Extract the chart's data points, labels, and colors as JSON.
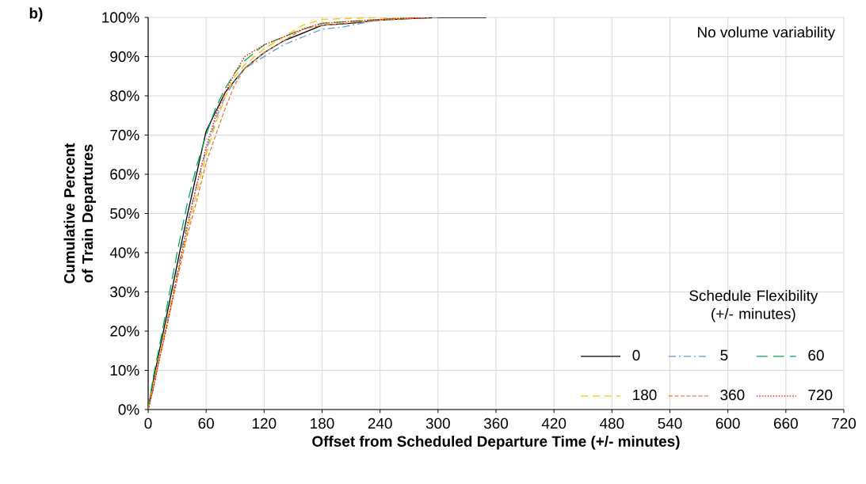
{
  "chart_data": {
    "type": "line",
    "xlabel": "Offset from Scheduled Departure Time (+/- minutes)",
    "ylabel": "Cumulative Percent of Train Departures",
    "legend_title": "Schedule Flexibility (+/- minutes)",
    "annotations": [
      "b)",
      "No volume variability"
    ],
    "xlim": [
      0,
      720
    ],
    "xticks": [
      0,
      60,
      120,
      180,
      240,
      300,
      360,
      420,
      480,
      540,
      600,
      660,
      720
    ],
    "ylim": [
      0,
      100
    ],
    "yticks": [
      {
        "value": 0,
        "label": "0%"
      },
      {
        "value": 10,
        "label": "10%"
      },
      {
        "value": 20,
        "label": "20%"
      },
      {
        "value": 30,
        "label": "30%"
      },
      {
        "value": 40,
        "label": "40%"
      },
      {
        "value": 50,
        "label": "50%"
      },
      {
        "value": 60,
        "label": "60%"
      },
      {
        "value": 70,
        "label": "70%"
      },
      {
        "value": 80,
        "label": "80%"
      },
      {
        "value": 90,
        "label": "90%"
      },
      {
        "value": 100,
        "label": "100%"
      }
    ],
    "grid": true,
    "legend": "bottom right",
    "marker": "none",
    "series": [
      {
        "name": "0",
        "color": "#000000",
        "line_style": "solid",
        "x": [
          0,
          5,
          10,
          20,
          30,
          40,
          50,
          60,
          70,
          80,
          90,
          100,
          120,
          140,
          160,
          180,
          210,
          240,
          270,
          300,
          350
        ],
        "values": [
          0,
          7,
          13,
          25,
          37,
          49,
          60,
          71,
          76,
          81,
          84,
          87,
          91,
          94,
          96,
          98,
          98.5,
          99.3,
          99.7,
          100,
          100
        ]
      },
      {
        "name": "5",
        "color": "#5b9bd5",
        "line_style": "dashdot",
        "x": [
          0,
          5,
          10,
          20,
          30,
          40,
          50,
          60,
          70,
          80,
          90,
          100,
          120,
          140,
          160,
          180,
          200,
          240,
          300
        ],
        "values": [
          0,
          5,
          11,
          23,
          35,
          47,
          57,
          66,
          74,
          80,
          84,
          87,
          90,
          93,
          95,
          97,
          97.5,
          99.5,
          100
        ]
      },
      {
        "name": "60",
        "color": "#00b050",
        "line_style": "longdash",
        "x": [
          0,
          5,
          10,
          20,
          30,
          40,
          50,
          60,
          70,
          80,
          90,
          100,
          120,
          140,
          160,
          180,
          240,
          280
        ],
        "values": [
          0,
          8,
          14,
          27,
          40,
          52,
          62,
          70,
          77,
          82,
          86,
          89,
          93,
          95,
          97,
          98.5,
          99.5,
          100
        ]
      },
      {
        "name": "180",
        "color": "#ffc000",
        "line_style": "dashed",
        "x": [
          0,
          5,
          10,
          20,
          30,
          40,
          50,
          60,
          70,
          80,
          90,
          100,
          120,
          140,
          160,
          180,
          240,
          270
        ],
        "values": [
          0,
          6,
          12,
          23,
          34,
          45,
          55,
          65,
          73,
          80,
          85,
          88,
          92,
          95,
          98,
          99.5,
          100,
          100
        ]
      },
      {
        "name": "360",
        "color": "#ed7d31",
        "line_style": "shortdash",
        "x": [
          0,
          5,
          10,
          20,
          30,
          40,
          50,
          60,
          70,
          80,
          90,
          100,
          120,
          140,
          160,
          180,
          240,
          290
        ],
        "values": [
          0,
          5,
          11,
          22,
          33,
          44,
          53,
          63,
          70,
          77,
          83,
          87,
          91,
          94,
          97,
          98,
          99.3,
          100
        ]
      },
      {
        "name": "720",
        "color": "#ff0000",
        "line_style": "dotted",
        "x": [
          0,
          5,
          10,
          20,
          30,
          40,
          50,
          60,
          70,
          80,
          90,
          100,
          120,
          140,
          160,
          180,
          240,
          290
        ],
        "values": [
          0,
          5,
          11,
          22,
          34,
          46,
          57,
          67,
          75,
          81,
          86,
          90,
          93,
          95,
          97,
          98.5,
          99.5,
          100
        ]
      }
    ]
  }
}
